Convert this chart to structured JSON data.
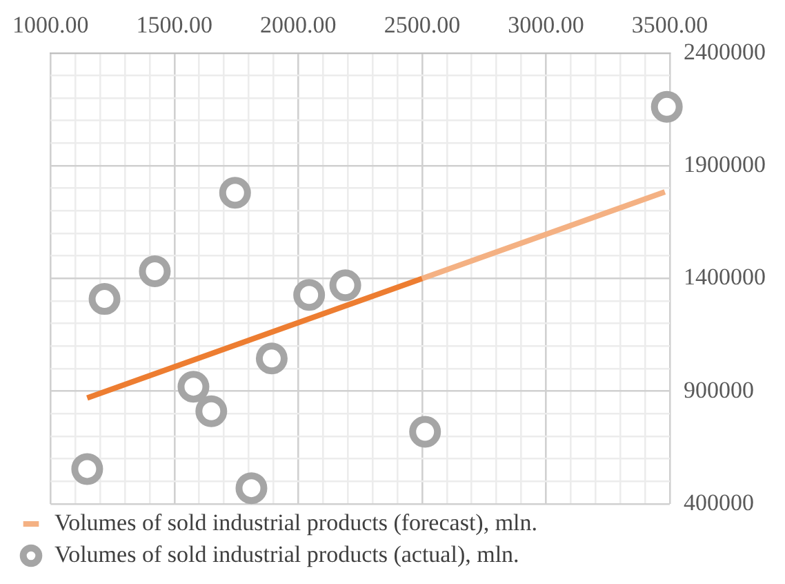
{
  "chart_data": {
    "type": "scatter",
    "xlim": [
      1000,
      3500
    ],
    "ylim": [
      400000,
      2400000
    ],
    "xticks": [
      {
        "value": 1000,
        "label": "1000.00"
      },
      {
        "value": 1100,
        "label": null
      },
      {
        "value": 1200,
        "label": null
      },
      {
        "value": 1300,
        "label": null
      },
      {
        "value": 1400,
        "label": null
      },
      {
        "value": 1500,
        "label": "1500.00"
      },
      {
        "value": 1600,
        "label": null
      },
      {
        "value": 1700,
        "label": null
      },
      {
        "value": 1800,
        "label": null
      },
      {
        "value": 1900,
        "label": null
      },
      {
        "value": 2000,
        "label": "2000.00"
      },
      {
        "value": 2100,
        "label": null
      },
      {
        "value": 2200,
        "label": null
      },
      {
        "value": 2300,
        "label": null
      },
      {
        "value": 2400,
        "label": null
      },
      {
        "value": 2500,
        "label": "2500.00"
      },
      {
        "value": 2600,
        "label": null
      },
      {
        "value": 2700,
        "label": null
      },
      {
        "value": 2800,
        "label": null
      },
      {
        "value": 2900,
        "label": null
      },
      {
        "value": 3000,
        "label": "3000.00"
      },
      {
        "value": 3100,
        "label": null
      },
      {
        "value": 3200,
        "label": null
      },
      {
        "value": 3300,
        "label": null
      },
      {
        "value": 3400,
        "label": null
      },
      {
        "value": 3500,
        "label": "3500.00"
      }
    ],
    "yticks": [
      400000,
      {
        "value": 500000,
        "label": null
      },
      {
        "value": 600000,
        "label": null
      },
      {
        "value": 700000,
        "label": null
      },
      {
        "value": 800000,
        "label": null
      },
      900000,
      {
        "value": 1000000,
        "label": null
      },
      {
        "value": 1100000,
        "label": null
      },
      {
        "value": 1200000,
        "label": null
      },
      {
        "value": 1300000,
        "label": null
      },
      1400000,
      {
        "value": 1500000,
        "label": null
      },
      {
        "value": 1600000,
        "label": null
      },
      {
        "value": 1700000,
        "label": null
      },
      {
        "value": 1800000,
        "label": null
      },
      1900000,
      {
        "value": 2000000,
        "label": null
      },
      {
        "value": 2100000,
        "label": null
      },
      {
        "value": 2200000,
        "label": null
      },
      {
        "value": 2300000,
        "label": null
      },
      2400000
    ],
    "grid": true,
    "legend": "bottom",
    "series": [
      {
        "type": "line",
        "color": "#ed7d31",
        "x": [
          1148,
          2500
        ],
        "values": [
          870000,
          1400000
        ]
      },
      {
        "type": "line",
        "name": "Volumes of sold industrial products (forecast), mln.",
        "color": "#f4b183",
        "x": [
          2500,
          3480
        ],
        "values": [
          1400000,
          1784000
        ]
      },
      {
        "name": "Volumes of sold industrial products (actual), mln.",
        "color": "#a5a5a5",
        "marker": "circle",
        "x": [
          1148,
          1218,
          1421,
          1577,
          1649,
          1745,
          1811,
          1893,
          2044,
          2190,
          2512,
          3488
        ],
        "values": [
          555000,
          1309000,
          1432000,
          920000,
          811000,
          1780000,
          470000,
          1045000,
          1327000,
          1370000,
          720000,
          2161000
        ]
      }
    ]
  }
}
